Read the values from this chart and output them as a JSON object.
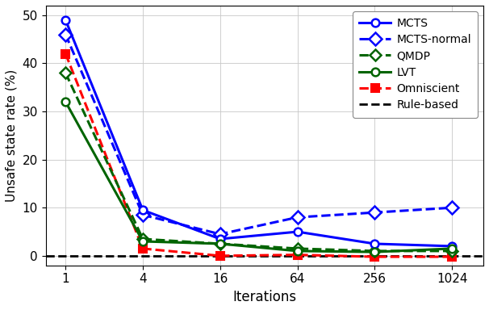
{
  "x_values": [
    1,
    4,
    16,
    64,
    256,
    1024
  ],
  "MCTS": [
    49.0,
    9.5,
    3.5,
    5.0,
    2.5,
    2.0
  ],
  "MCTS_normal": [
    46.0,
    8.5,
    4.5,
    8.0,
    9.0,
    10.0
  ],
  "QMDP": [
    38.0,
    3.5,
    2.5,
    1.5,
    1.0,
    1.0
  ],
  "LVT": [
    32.0,
    3.0,
    2.5,
    1.0,
    0.8,
    1.5
  ],
  "Omniscient": [
    42.0,
    1.5,
    0.0,
    0.2,
    -0.2,
    -0.2
  ],
  "Rule_based": 0.0,
  "colors": {
    "MCTS": "#0000ff",
    "MCTS_normal": "#0000ff",
    "QMDP": "#006400",
    "LVT": "#006400",
    "Omniscient": "#ff0000",
    "Rule_based": "#000000"
  },
  "ylabel": "Unsafe state rate (%)",
  "xlabel": "Iterations",
  "ylim": [
    -2,
    52
  ],
  "yticks": [
    0,
    10,
    20,
    30,
    40,
    50
  ],
  "figsize": [
    6.06,
    3.84
  ],
  "dpi": 100
}
